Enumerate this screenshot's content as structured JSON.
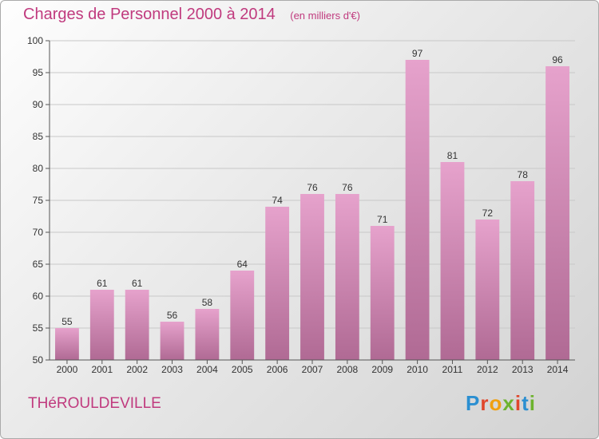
{
  "header": {
    "title": "Charges de Personnel 2000 à 2014",
    "subtitle": "(en milliers d'€)"
  },
  "footer": {
    "place": "THéROULDEVILLE",
    "logo": "Proxiti"
  },
  "colors": {
    "title": "#c03a7e",
    "bar_top": "#e6a2cc",
    "bar_bottom": "#b06a94"
  },
  "chart_data": {
    "type": "bar",
    "title": "Charges de Personnel 2000 à 2014",
    "subtitle": "(en milliers d'€)",
    "categories": [
      "2000",
      "2001",
      "2002",
      "2003",
      "2004",
      "2005",
      "2006",
      "2007",
      "2008",
      "2009",
      "2010",
      "2011",
      "2012",
      "2013",
      "2014"
    ],
    "values": [
      55,
      61,
      61,
      56,
      58,
      64,
      74,
      76,
      76,
      71,
      97,
      81,
      72,
      78,
      96
    ],
    "ylim": [
      50,
      100
    ],
    "yticks": [
      50,
      55,
      60,
      65,
      70,
      75,
      80,
      85,
      90,
      95,
      100
    ],
    "grid": true,
    "data_labels": true
  }
}
